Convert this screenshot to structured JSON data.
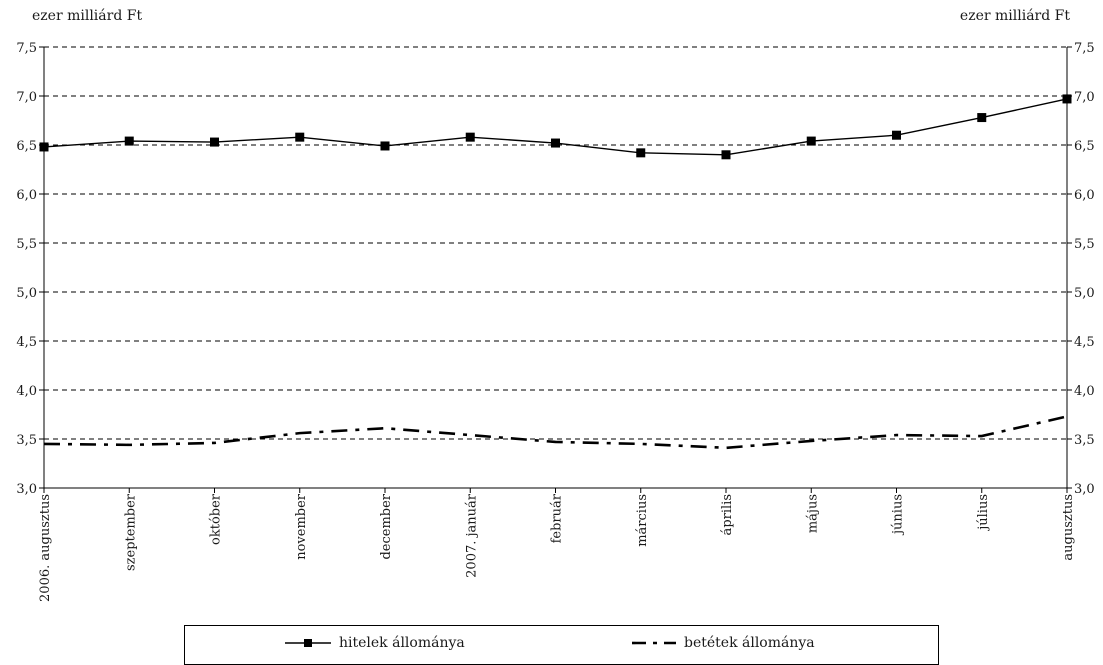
{
  "chart_data": {
    "type": "line",
    "y_unit_left": "ezer milliárd Ft",
    "y_unit_right": "ezer milliárd Ft",
    "categories": [
      "2006. augusztus",
      "szeptember",
      "október",
      "november",
      "december",
      "2007. január",
      "február",
      "március",
      "április",
      "május",
      "június",
      "július",
      "augusztus"
    ],
    "ylim": [
      3.0,
      7.5
    ],
    "yticks": [
      "3,0",
      "3,5",
      "4,0",
      "4,5",
      "5,0",
      "5,5",
      "6,0",
      "6,5",
      "7,0",
      "7,5"
    ],
    "ytick_values": [
      3.0,
      3.5,
      4.0,
      4.5,
      5.0,
      5.5,
      6.0,
      6.5,
      7.0,
      7.5
    ],
    "grid": "horizontal-dashed",
    "series": [
      {
        "name": "hitelek állománya",
        "style": "solid-square-markers",
        "color": "#000000",
        "values": [
          6.48,
          6.54,
          6.53,
          6.58,
          6.49,
          6.58,
          6.52,
          6.42,
          6.4,
          6.54,
          6.6,
          6.78,
          6.97
        ]
      },
      {
        "name": "betétek állománya",
        "style": "dash-dot",
        "color": "#000000",
        "values": [
          3.45,
          3.44,
          3.46,
          3.56,
          3.61,
          3.54,
          3.47,
          3.45,
          3.41,
          3.48,
          3.54,
          3.53,
          3.73
        ]
      }
    ],
    "legend_position": "bottom"
  }
}
